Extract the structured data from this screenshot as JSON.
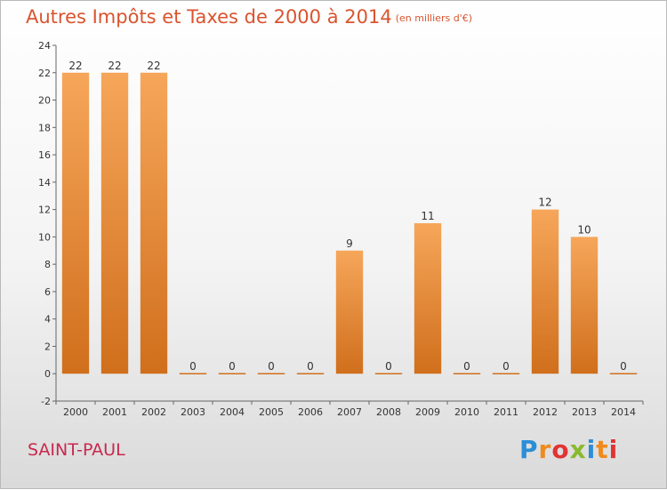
{
  "header": {
    "title": "Autres Impôts et Taxes de 2000 à 2014",
    "subtitle": "(en milliers d'€)"
  },
  "footer": {
    "commune": "SAINT-PAUL",
    "logo": "Proxiti"
  },
  "colors": {
    "bar_top": "#f6a65a",
    "bar_bottom": "#d06f1c",
    "title": "#d9542e",
    "commune": "#c8284e"
  },
  "chart_data": {
    "type": "bar",
    "title": "Autres Impôts et Taxes de 2000 à 2014",
    "subtitle": "(en milliers d'€)",
    "categories": [
      "2000",
      "2001",
      "2002",
      "2003",
      "2004",
      "2005",
      "2006",
      "2007",
      "2008",
      "2009",
      "2010",
      "2011",
      "2012",
      "2013",
      "2014"
    ],
    "values": [
      22,
      22,
      22,
      0,
      0,
      0,
      0,
      9,
      0,
      11,
      0,
      0,
      12,
      10,
      0
    ],
    "ylim": [
      -2,
      24
    ],
    "yticks": [
      -2,
      0,
      2,
      4,
      6,
      8,
      10,
      12,
      14,
      16,
      18,
      20,
      22,
      24
    ],
    "xlabel": "",
    "ylabel": "",
    "grid": false,
    "data_labels": true
  }
}
